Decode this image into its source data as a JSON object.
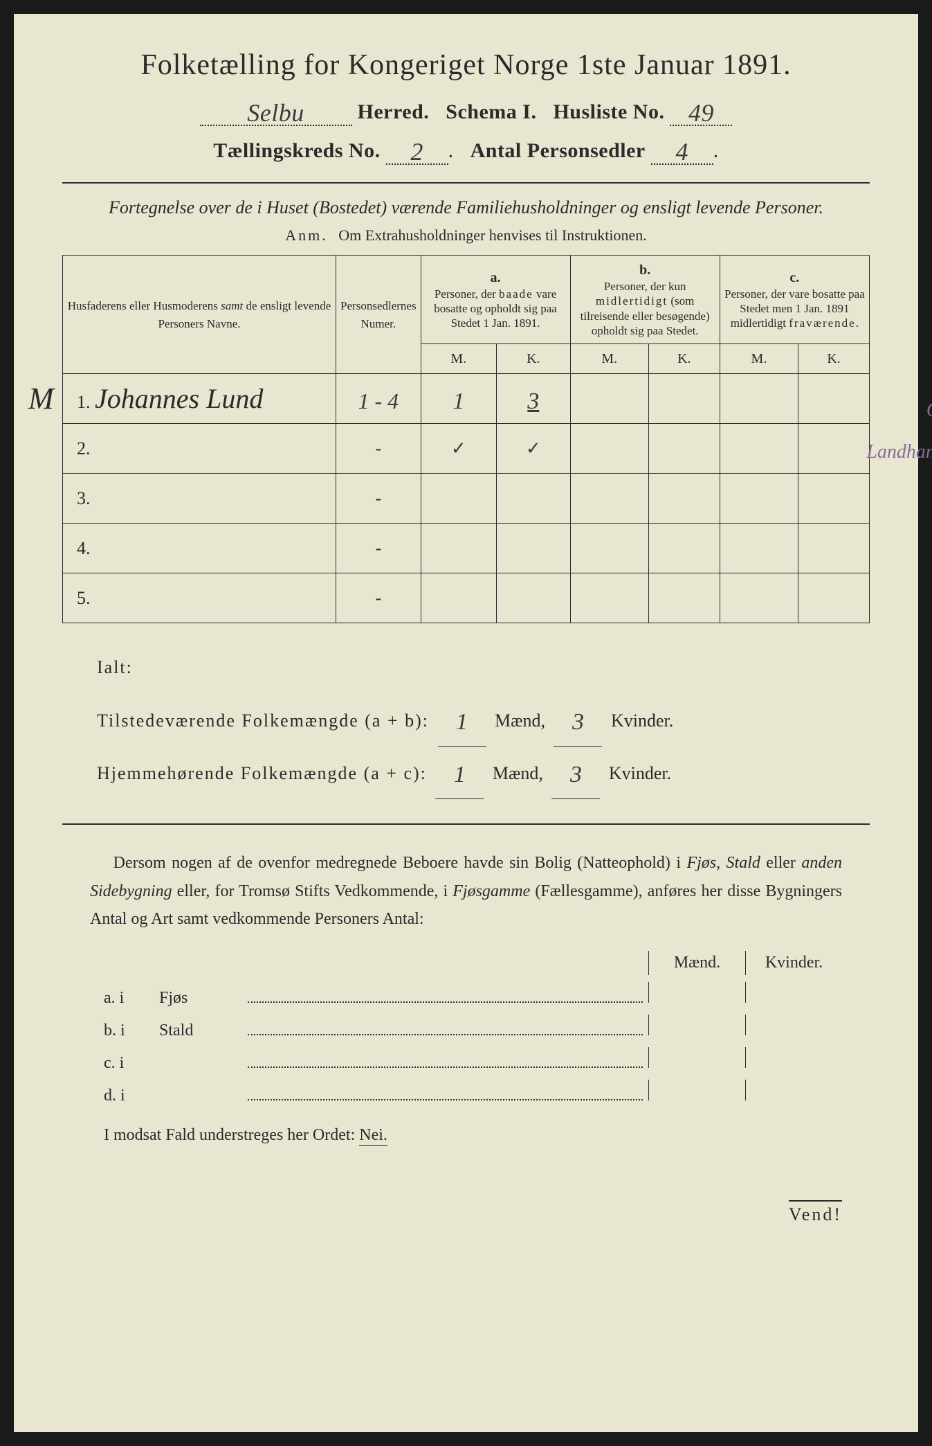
{
  "title": "Folketælling for Kongeriget Norge 1ste Januar 1891.",
  "header": {
    "herred_value": "Selbu",
    "herred_label": "Herred.",
    "schema_label": "Schema I.",
    "husliste_label": "Husliste No.",
    "husliste_value": "49",
    "kreds_label": "Tællingskreds No.",
    "kreds_value": "2",
    "sedler_label": "Antal Personsedler",
    "sedler_value": "4"
  },
  "subtitle": "Fortegnelse over de i Huset (Bostedet) værende Familiehusholdninger og ensligt levende Personer.",
  "anm_label": "Anm.",
  "anm_text": "Om Extrahusholdninger henvises til Instruktionen.",
  "table": {
    "col_names_header": "Husfaderens eller Husmoderens samt de ensligt levende Personers Navne.",
    "col_numer_header": "Personsedlernes Numer.",
    "col_a_letter": "a.",
    "col_a_text": "Personer, der baade vare bosatte og opholdt sig paa Stedet 1 Jan. 1891.",
    "col_b_letter": "b.",
    "col_b_text": "Personer, der kun midlertidigt (som tilreisende eller besøgende) opholdt sig paa Stedet.",
    "col_c_letter": "c.",
    "col_c_text": "Personer, der vare bosatte paa Stedet men 1 Jan. 1891 midlertidigt fraværende.",
    "m_label": "M.",
    "k_label": "K.",
    "margin_note_top": "Gbrg",
    "margin_note_main": "Landhandler",
    "leading_letter": "M",
    "rows": [
      {
        "num": "1.",
        "name": "Johannes Lund",
        "numer": "1 - 4",
        "a_m": "1",
        "a_k": "3",
        "b_m": "",
        "b_k": "",
        "c_m": "",
        "c_k": ""
      },
      {
        "num": "2.",
        "name": "",
        "numer": "-",
        "a_m": "✓",
        "a_k": "✓",
        "b_m": "",
        "b_k": "",
        "c_m": "",
        "c_k": ""
      },
      {
        "num": "3.",
        "name": "",
        "numer": "-",
        "a_m": "",
        "a_k": "",
        "b_m": "",
        "b_k": "",
        "c_m": "",
        "c_k": ""
      },
      {
        "num": "4.",
        "name": "",
        "numer": "-",
        "a_m": "",
        "a_k": "",
        "b_m": "",
        "b_k": "",
        "c_m": "",
        "c_k": ""
      },
      {
        "num": "5.",
        "name": "",
        "numer": "-",
        "a_m": "",
        "a_k": "",
        "b_m": "",
        "b_k": "",
        "c_m": "",
        "c_k": ""
      }
    ]
  },
  "totals": {
    "ialt_label": "Ialt:",
    "present_label": "Tilstedeværende Folkemængde (a + b):",
    "resident_label": "Hjemmehørende Folkemængde (a + c):",
    "maend_label": "Mænd,",
    "kvinder_label": "Kvinder.",
    "present_m": "1",
    "present_k": "3",
    "resident_m": "1",
    "resident_k": "3"
  },
  "paragraph": "Dersom nogen af de ovenfor medregnede Beboere havde sin Bolig (Natteophold) i Fjøs, Stald eller anden Sidebygning eller, for Tromsø Stifts Vedkommende, i Fjøsgamme (Fællesgamme), anføres her disse Bygningers Antal og Art samt vedkommende Personers Antal:",
  "side_buildings": {
    "maend": "Mænd.",
    "kvinder": "Kvinder.",
    "a_label": "a.  i",
    "a_name": "Fjøs",
    "b_label": "b.  i",
    "b_name": "Stald",
    "c_label": "c.  i",
    "c_name": "",
    "d_label": "d.  i",
    "d_name": ""
  },
  "nei_line_prefix": "I modsat Fald understreges her Ordet: ",
  "nei_word": "Nei.",
  "vend": "Vend!",
  "colors": {
    "paper": "#e8e6d0",
    "ink": "#2a2a2a",
    "purple": "#8a6a9a"
  }
}
